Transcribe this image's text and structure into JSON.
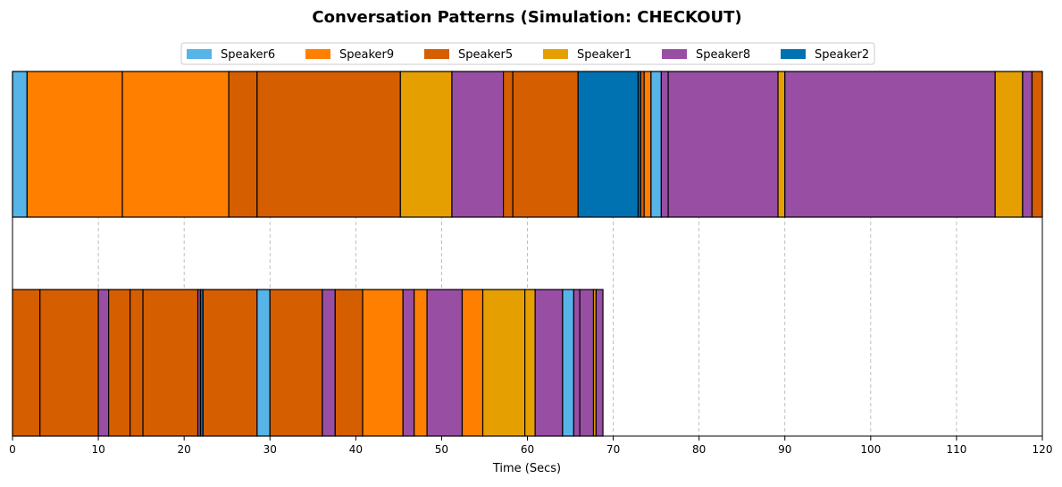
{
  "chart_data": {
    "type": "bar",
    "orientation": "horizontal-timeline",
    "title": "Conversation Patterns (Simulation: CHECKOUT)",
    "xlabel": "Time (Secs)",
    "ylabel": "",
    "xlim": [
      0,
      120
    ],
    "xticks": [
      0,
      10,
      20,
      30,
      40,
      50,
      60,
      70,
      80,
      90,
      100,
      110,
      120
    ],
    "grid": "x-dashed",
    "legend_position": "top-center",
    "speakers": [
      {
        "name": "Speaker6",
        "color": "#56b4e9"
      },
      {
        "name": "Speaker9",
        "color": "#ff7f00"
      },
      {
        "name": "Speaker5",
        "color": "#d55e00"
      },
      {
        "name": "Speaker1",
        "color": "#e69f00"
      },
      {
        "name": "Speaker8",
        "color": "#984ea3"
      },
      {
        "name": "Speaker2",
        "color": "#0072b2"
      }
    ],
    "rows": [
      {
        "segments": [
          {
            "speaker": "Speaker6",
            "start": 0,
            "end": 1.7
          },
          {
            "speaker": "Speaker9",
            "start": 1.7,
            "end": 12.8
          },
          {
            "speaker": "Speaker9",
            "start": 12.8,
            "end": 25.2
          },
          {
            "speaker": "Speaker5",
            "start": 25.2,
            "end": 28.5
          },
          {
            "speaker": "Speaker5",
            "start": 28.5,
            "end": 45.2
          },
          {
            "speaker": "Speaker1",
            "start": 45.2,
            "end": 51.2
          },
          {
            "speaker": "Speaker8",
            "start": 51.2,
            "end": 57.2
          },
          {
            "speaker": "Speaker5",
            "start": 57.2,
            "end": 58.3
          },
          {
            "speaker": "Speaker5",
            "start": 58.3,
            "end": 65.9
          },
          {
            "speaker": "Speaker2",
            "start": 65.9,
            "end": 72.9
          },
          {
            "speaker": "Speaker2",
            "start": 72.9,
            "end": 73.2
          },
          {
            "speaker": "Speaker5",
            "start": 73.2,
            "end": 73.6
          },
          {
            "speaker": "Speaker9",
            "start": 73.6,
            "end": 74.4
          },
          {
            "speaker": "Speaker6",
            "start": 74.4,
            "end": 75.6
          },
          {
            "speaker": "Speaker8",
            "start": 75.6,
            "end": 76.4
          },
          {
            "speaker": "Speaker8",
            "start": 76.4,
            "end": 89.2
          },
          {
            "speaker": "Speaker1",
            "start": 89.2,
            "end": 90.0
          },
          {
            "speaker": "Speaker8",
            "start": 90.0,
            "end": 114.5
          },
          {
            "speaker": "Speaker1",
            "start": 114.5,
            "end": 117.7
          },
          {
            "speaker": "Speaker8",
            "start": 117.7,
            "end": 118.8
          },
          {
            "speaker": "Speaker5",
            "start": 118.8,
            "end": 120.0
          }
        ]
      },
      {
        "segments": [
          {
            "speaker": "Speaker5",
            "start": 0,
            "end": 3.2
          },
          {
            "speaker": "Speaker5",
            "start": 3.2,
            "end": 10.0
          },
          {
            "speaker": "Speaker8",
            "start": 10.0,
            "end": 11.2
          },
          {
            "speaker": "Speaker5",
            "start": 11.2,
            "end": 13.7
          },
          {
            "speaker": "Speaker5",
            "start": 13.7,
            "end": 15.2
          },
          {
            "speaker": "Speaker5",
            "start": 15.2,
            "end": 21.6
          },
          {
            "speaker": "Speaker8",
            "start": 21.6,
            "end": 21.9
          },
          {
            "speaker": "Speaker2",
            "start": 21.9,
            "end": 22.2
          },
          {
            "speaker": "Speaker5",
            "start": 22.2,
            "end": 28.5
          },
          {
            "speaker": "Speaker6",
            "start": 28.5,
            "end": 30.0
          },
          {
            "speaker": "Speaker5",
            "start": 30.0,
            "end": 36.1
          },
          {
            "speaker": "Speaker8",
            "start": 36.1,
            "end": 37.6
          },
          {
            "speaker": "Speaker5",
            "start": 37.6,
            "end": 40.8
          },
          {
            "speaker": "Speaker9",
            "start": 40.8,
            "end": 45.5
          },
          {
            "speaker": "Speaker8",
            "start": 45.5,
            "end": 46.8
          },
          {
            "speaker": "Speaker9",
            "start": 46.8,
            "end": 48.3
          },
          {
            "speaker": "Speaker8",
            "start": 48.3,
            "end": 52.4
          },
          {
            "speaker": "Speaker9",
            "start": 52.4,
            "end": 54.8
          },
          {
            "speaker": "Speaker1",
            "start": 54.8,
            "end": 59.7
          },
          {
            "speaker": "Speaker1",
            "start": 59.7,
            "end": 60.9
          },
          {
            "speaker": "Speaker8",
            "start": 60.9,
            "end": 64.1
          },
          {
            "speaker": "Speaker6",
            "start": 64.1,
            "end": 65.4
          },
          {
            "speaker": "Speaker8",
            "start": 65.4,
            "end": 66.1
          },
          {
            "speaker": "Speaker8",
            "start": 66.1,
            "end": 67.7
          },
          {
            "speaker": "Speaker1",
            "start": 67.7,
            "end": 68.0
          },
          {
            "speaker": "Speaker8",
            "start": 68.0,
            "end": 68.8
          }
        ]
      }
    ]
  }
}
